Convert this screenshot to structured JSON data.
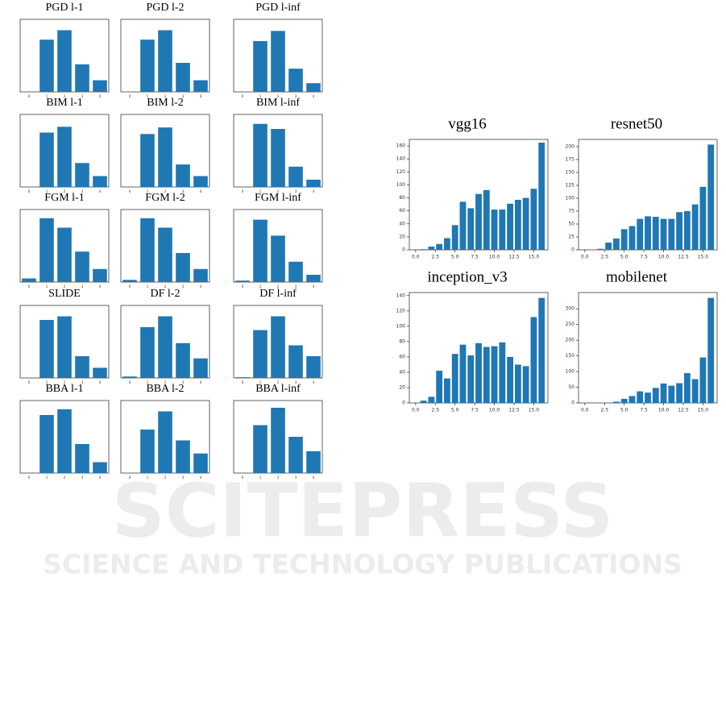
{
  "watermark": {
    "text": "SCITEPRESS",
    "subtitle": "SCIENCE AND TECHNOLOGY PUBLICATIONS"
  },
  "chart_data": [
    {
      "type": "bar",
      "title": "PGD l-1",
      "categories": [
        "0",
        "1",
        "2",
        "3",
        "4"
      ],
      "values": [
        0,
        72,
        85,
        38,
        16
      ],
      "ylim": [
        0,
        100
      ],
      "color": "#1f77b4"
    },
    {
      "type": "bar",
      "title": "PGD l-2",
      "categories": [
        "0",
        "1",
        "2",
        "3",
        "4"
      ],
      "values": [
        0,
        72,
        85,
        40,
        16
      ],
      "ylim": [
        0,
        100
      ],
      "color": "#1f77b4"
    },
    {
      "type": "bar",
      "title": "PGD l-inf",
      "categories": [
        "0",
        "1",
        "2",
        "3",
        "4"
      ],
      "values": [
        0,
        70,
        84,
        32,
        12
      ],
      "ylim": [
        0,
        100
      ],
      "color": "#1f77b4"
    },
    {
      "type": "bar",
      "title": "BIM l-1",
      "categories": [
        "0",
        "1",
        "2",
        "3",
        "4"
      ],
      "values": [
        0,
        75,
        83,
        33,
        15
      ],
      "ylim": [
        0,
        100
      ],
      "color": "#1f77b4"
    },
    {
      "type": "bar",
      "title": "BIM l-2",
      "categories": [
        "0",
        "1",
        "2",
        "3",
        "4"
      ],
      "values": [
        0,
        73,
        82,
        31,
        15
      ],
      "ylim": [
        0,
        100
      ],
      "color": "#1f77b4"
    },
    {
      "type": "bar",
      "title": "BIM l-inf",
      "categories": [
        "0",
        "1",
        "2",
        "3",
        "4"
      ],
      "values": [
        0,
        87,
        80,
        28,
        10
      ],
      "ylim": [
        0,
        100
      ],
      "color": "#1f77b4"
    },
    {
      "type": "bar",
      "title": "FGM l-1",
      "categories": [
        "0",
        "1",
        "2",
        "3",
        "4"
      ],
      "values": [
        5,
        88,
        75,
        42,
        18
      ],
      "ylim": [
        0,
        100
      ],
      "color": "#1f77b4"
    },
    {
      "type": "bar",
      "title": "FGM l-2",
      "categories": [
        "0",
        "1",
        "2",
        "3",
        "4"
      ],
      "values": [
        3,
        88,
        75,
        40,
        18
      ],
      "ylim": [
        0,
        100
      ],
      "color": "#1f77b4"
    },
    {
      "type": "bar",
      "title": "FGM l-inf",
      "categories": [
        "0",
        "1",
        "2",
        "3",
        "4"
      ],
      "values": [
        2,
        86,
        64,
        28,
        10
      ],
      "ylim": [
        0,
        100
      ],
      "color": "#1f77b4"
    },
    {
      "type": "bar",
      "title": "SLIDE",
      "categories": [
        "0",
        "1",
        "2",
        "3",
        "4"
      ],
      "values": [
        0,
        80,
        85,
        30,
        14
      ],
      "ylim": [
        0,
        100
      ],
      "color": "#1f77b4"
    },
    {
      "type": "bar",
      "title": "DF l-2",
      "categories": [
        "0",
        "1",
        "2",
        "3",
        "4"
      ],
      "values": [
        2,
        70,
        85,
        48,
        27
      ],
      "ylim": [
        0,
        100
      ],
      "color": "#1f77b4"
    },
    {
      "type": "bar",
      "title": "DF l-inf",
      "categories": [
        "0",
        "1",
        "2",
        "3",
        "4"
      ],
      "values": [
        1,
        66,
        85,
        45,
        30
      ],
      "ylim": [
        0,
        100
      ],
      "color": "#1f77b4"
    },
    {
      "type": "bar",
      "title": "BBA l-1",
      "categories": [
        "0",
        "1",
        "2",
        "3",
        "4"
      ],
      "values": [
        0,
        80,
        88,
        40,
        15
      ],
      "ylim": [
        0,
        100
      ],
      "color": "#1f77b4"
    },
    {
      "type": "bar",
      "title": "BBA l-2",
      "categories": [
        "0",
        "1",
        "2",
        "3",
        "4"
      ],
      "values": [
        0,
        60,
        85,
        45,
        27
      ],
      "ylim": [
        0,
        100
      ],
      "color": "#1f77b4"
    },
    {
      "type": "bar",
      "title": "BBA l-inf",
      "categories": [
        "0",
        "1",
        "2",
        "3",
        "4"
      ],
      "values": [
        0,
        66,
        90,
        50,
        30
      ],
      "ylim": [
        0,
        100
      ],
      "color": "#1f77b4"
    },
    {
      "type": "bar",
      "title": "vgg16",
      "x": [
        0,
        1,
        2,
        3,
        4,
        5,
        6,
        7,
        8,
        9,
        10,
        11,
        12,
        13,
        14,
        15,
        16
      ],
      "values": [
        0,
        1,
        5,
        9,
        18,
        38,
        74,
        64,
        86,
        92,
        62,
        62,
        71,
        77,
        80,
        94,
        165
      ],
      "xlim": [
        -0.8,
        16.8
      ],
      "ylim": [
        0,
        170
      ],
      "xticks": [
        {
          "value": 0,
          "label": "0.0"
        },
        2.5,
        {
          "value": 5,
          "label": "5.0"
        },
        7.5,
        {
          "value": 10,
          "label": "10.0"
        },
        12.5,
        {
          "value": 15,
          "label": "15.0"
        }
      ],
      "yticks": [
        0,
        20,
        40,
        60,
        80,
        100,
        120,
        140,
        160
      ],
      "color": "#1f77b4"
    },
    {
      "type": "bar",
      "title": "resnet50",
      "x": [
        0,
        1,
        2,
        3,
        4,
        5,
        6,
        7,
        8,
        9,
        10,
        11,
        12,
        13,
        14,
        15,
        16
      ],
      "values": [
        0,
        0,
        2,
        14,
        22,
        40,
        46,
        60,
        65,
        64,
        60,
        60,
        73,
        75,
        88,
        122,
        204
      ],
      "xlim": [
        -0.8,
        16.8
      ],
      "ylim": [
        0,
        214
      ],
      "xticks": [
        {
          "value": 0,
          "label": "0.0"
        },
        2.5,
        {
          "value": 5,
          "label": "5.0"
        },
        7.5,
        {
          "value": 10,
          "label": "10.0"
        },
        12.5,
        {
          "value": 15,
          "label": "15.0"
        }
      ],
      "yticks": [
        0,
        25,
        50,
        75,
        100,
        125,
        150,
        175,
        200
      ],
      "color": "#1f77b4"
    },
    {
      "type": "bar",
      "title": "inception_v3",
      "x": [
        0,
        1,
        2,
        3,
        4,
        5,
        6,
        7,
        8,
        9,
        10,
        11,
        12,
        13,
        14,
        15,
        16
      ],
      "values": [
        0,
        3,
        8,
        42,
        32,
        64,
        76,
        62,
        78,
        73,
        74,
        79,
        60,
        50,
        48,
        112,
        137
      ],
      "xlim": [
        -0.8,
        16.8
      ],
      "ylim": [
        0,
        144
      ],
      "xticks": [
        {
          "value": 0,
          "label": "0.0"
        },
        2.5,
        {
          "value": 5,
          "label": "5.0"
        },
        7.5,
        {
          "value": 10,
          "label": "10.0"
        },
        12.5,
        {
          "value": 15,
          "label": "15.0"
        }
      ],
      "yticks": [
        0,
        20,
        40,
        60,
        80,
        100,
        120,
        140
      ],
      "color": "#1f77b4"
    },
    {
      "type": "bar",
      "title": "mobilenet",
      "x": [
        0,
        1,
        2,
        3,
        4,
        5,
        6,
        7,
        8,
        9,
        10,
        11,
        12,
        13,
        14,
        15,
        16
      ],
      "values": [
        0,
        0,
        0,
        0,
        4,
        13,
        22,
        37,
        33,
        48,
        62,
        55,
        63,
        95,
        76,
        145,
        335
      ],
      "xlim": [
        -0.8,
        16.8
      ],
      "ylim": [
        0,
        352
      ],
      "xticks": [
        {
          "value": 0,
          "label": "0.0"
        },
        2.5,
        {
          "value": 5,
          "label": "5.0"
        },
        7.5,
        {
          "value": 10,
          "label": "10.0"
        },
        12.5,
        {
          "value": 15,
          "label": "15.0"
        }
      ],
      "yticks": [
        0,
        50,
        100,
        150,
        200,
        250,
        300
      ],
      "color": "#1f77b4"
    }
  ]
}
